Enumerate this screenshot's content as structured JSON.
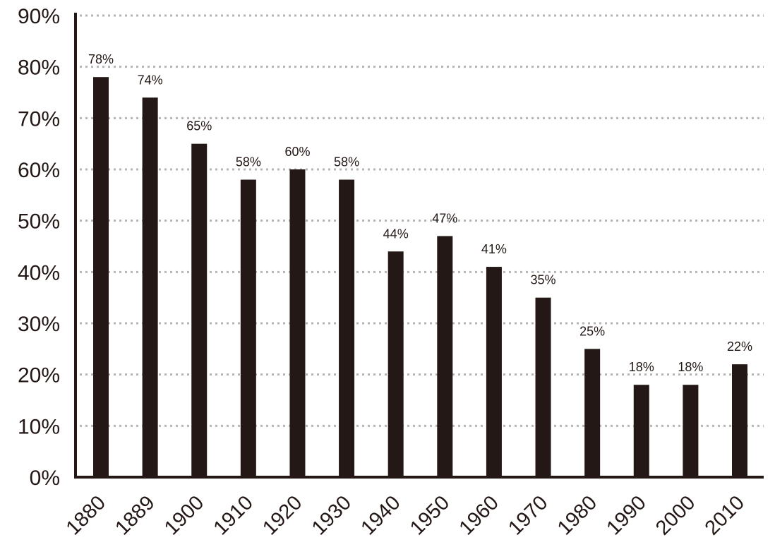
{
  "chart_data": {
    "type": "bar",
    "title": "",
    "xlabel": "",
    "ylabel": "",
    "categories": [
      "1880",
      "1889",
      "1900",
      "1910",
      "1920",
      "1930",
      "1940",
      "1950",
      "1960",
      "1970",
      "1980",
      "1990",
      "2000",
      "2010"
    ],
    "values": [
      78,
      74,
      65,
      58,
      60,
      58,
      44,
      47,
      41,
      35,
      25,
      18,
      18,
      22
    ],
    "data_labels": [
      "78%",
      "74%",
      "65%",
      "58%",
      "60%",
      "58%",
      "44%",
      "47%",
      "41%",
      "35%",
      "25%",
      "18%",
      "18%",
      "22%"
    ],
    "value_unit": "%",
    "ylim": [
      0,
      90
    ],
    "y_ticks": [
      0,
      10,
      20,
      30,
      40,
      50,
      60,
      70,
      80,
      90
    ],
    "y_tick_labels": [
      "0%",
      "10%",
      "20%",
      "30%",
      "40%",
      "50%",
      "60%",
      "70%",
      "80%",
      "90%"
    ],
    "grid": true,
    "grid_style": "dotted-horizontal",
    "legend": "none",
    "x_tick_rotation": "diagonal",
    "colors": {
      "bar": "#231815",
      "axis": "#231815",
      "grid": "#b5b5b5",
      "text": "#231815",
      "background": "#ffffff"
    }
  }
}
